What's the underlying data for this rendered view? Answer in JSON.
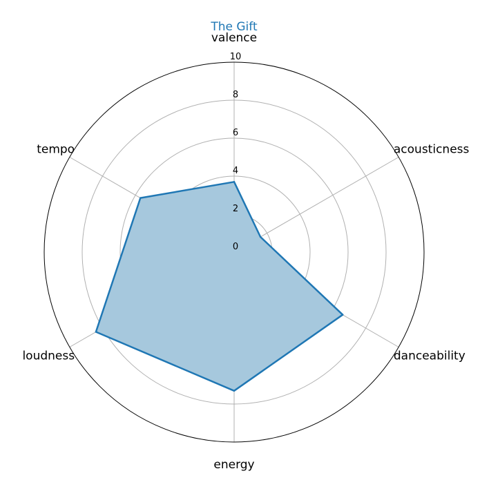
{
  "chart_data": {
    "type": "radar",
    "title": "The Gift",
    "axes": [
      "valence",
      "acousticness",
      "danceability",
      "energy",
      "loudness",
      "tempo"
    ],
    "rlim": [
      0,
      10
    ],
    "r_ticks": [
      "0",
      "2",
      "4",
      "6",
      "8",
      "10"
    ],
    "series": [
      {
        "values": [
          3.7,
          1.6,
          6.6,
          7.3,
          8.4,
          5.7
        ]
      }
    ],
    "grid": true,
    "colors": {
      "title": "#1f77b4",
      "line": "#1f77b4",
      "fill": "#a6c8dd",
      "grid": "#b0b0b0",
      "outer_ring": "#000000"
    }
  }
}
